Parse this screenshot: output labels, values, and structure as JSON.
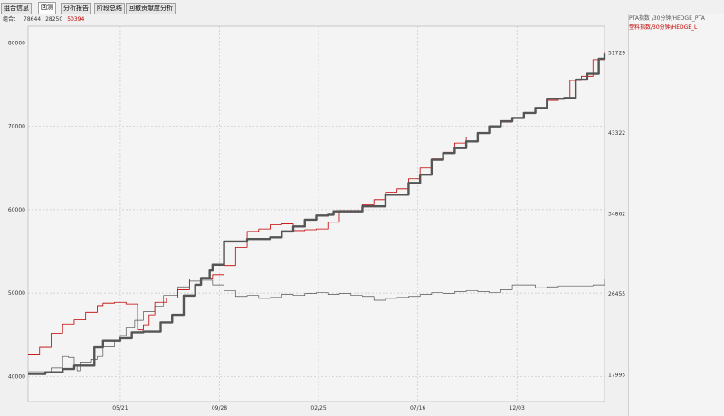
{
  "tabs": [
    {
      "label": "组合信息",
      "active": false
    },
    {
      "label": "回测",
      "active": true
    },
    {
      "label": "分析报告",
      "active": false
    },
    {
      "label": "阶段总结",
      "active": false
    },
    {
      "label": "回撤贡献度分析",
      "active": false
    }
  ],
  "subtitle": {
    "label": "组合：",
    "v1": "78644",
    "v2": "28250",
    "v3": "50394"
  },
  "legend": [
    "PTA指数 /30分钟/HEDGE_PTA",
    "塑料指数/30分钟/HEDGE_L"
  ],
  "colors": {
    "portfolio": "#555555",
    "pta": "#555555",
    "plastic": "#c00000"
  },
  "chart_data": {
    "type": "line",
    "x_ticks": [
      "05/21",
      "09/28",
      "02/25",
      "07/16",
      "12/03"
    ],
    "left_axis": {
      "ticks": [
        40000,
        50000,
        60000,
        70000,
        80000
      ],
      "range": [
        37000,
        82000
      ]
    },
    "right_axis": {
      "ticks": [
        17995,
        26455,
        34862,
        43322,
        51729
      ],
      "range": [
        15176,
        54535
      ]
    },
    "grid": true,
    "x_range": [
      0,
      100
    ],
    "series": [
      {
        "name": "组合",
        "axis": "left",
        "x": [
          0,
          3,
          6,
          8,
          10,
          11.5,
          13,
          16,
          18,
          20,
          23,
          25,
          27,
          29,
          30,
          31.5,
          32,
          34,
          38,
          42,
          44,
          46,
          48,
          50,
          52,
          53,
          55,
          58,
          62,
          66,
          68,
          70,
          72,
          74,
          76,
          78,
          80,
          82,
          84,
          86,
          88,
          90,
          93,
          95,
          97,
          99,
          100
        ],
        "y": [
          40300,
          40500,
          40900,
          41300,
          41300,
          43500,
          44300,
          44600,
          45300,
          45400,
          46500,
          47400,
          49700,
          51000,
          51800,
          52700,
          53400,
          56200,
          56500,
          56700,
          57400,
          58000,
          58800,
          59300,
          59400,
          59800,
          59800,
          60400,
          61800,
          63200,
          64200,
          66000,
          66800,
          67400,
          68200,
          69200,
          70000,
          70600,
          71000,
          71600,
          72200,
          73300,
          73400,
          75600,
          76300,
          78100,
          78700
        ]
      },
      {
        "name": "PTA指数 /30分钟/HEDGE_PTA",
        "axis": "right",
        "x": [
          0,
          4,
          6,
          7,
          8,
          8.5,
          9,
          11,
          12,
          13,
          15,
          16,
          17,
          18.5,
          20,
          22,
          23.5,
          26,
          28,
          30,
          32,
          34,
          36,
          38,
          40,
          42,
          44,
          46,
          48,
          50,
          52,
          54,
          56,
          58,
          60,
          62,
          64,
          66,
          68,
          70,
          72,
          74,
          76,
          78,
          80,
          82,
          84,
          86,
          88,
          90,
          92,
          94,
          96,
          98,
          100
        ],
        "y": [
          18300,
          18700,
          19900,
          19800,
          18900,
          18400,
          19300,
          19600,
          19900,
          20900,
          21500,
          22100,
          22900,
          23700,
          24600,
          25200,
          26300,
          27200,
          27800,
          27900,
          27400,
          26800,
          26200,
          26300,
          26000,
          26100,
          26400,
          26300,
          26500,
          26600,
          26400,
          26500,
          26300,
          26200,
          25800,
          26000,
          26100,
          26200,
          26400,
          26600,
          26500,
          26700,
          26800,
          26700,
          26600,
          26900,
          27400,
          27400,
          27100,
          27200,
          27300,
          27300,
          27300,
          27400,
          28000
        ]
      },
      {
        "name": "塑料指数/30分钟/HEDGE_L",
        "axis": "left",
        "x": [
          0,
          2,
          4,
          6,
          8,
          10,
          12,
          13,
          15,
          17,
          19,
          20,
          21,
          22,
          24,
          26,
          28,
          30,
          32,
          34,
          36,
          38,
          40,
          42,
          44,
          46,
          48,
          50,
          52,
          54,
          56,
          58,
          60,
          62,
          64,
          66,
          68,
          70,
          72,
          74,
          76,
          78,
          80,
          82,
          84,
          86,
          88,
          90,
          92,
          94,
          96,
          98,
          100
        ],
        "y": [
          42700,
          43500,
          45200,
          46300,
          46800,
          47700,
          48500,
          48800,
          48900,
          48700,
          45600,
          46200,
          47400,
          48900,
          49400,
          50400,
          51700,
          51800,
          52200,
          53300,
          55500,
          57400,
          57700,
          58200,
          58300,
          57500,
          57600,
          57700,
          58500,
          59900,
          59900,
          60600,
          61200,
          62100,
          62500,
          63700,
          65000,
          66100,
          66900,
          68000,
          68700,
          69200,
          70000,
          70500,
          71000,
          71600,
          72200,
          73100,
          73300,
          75500,
          76000,
          78000,
          79000
        ]
      }
    ]
  }
}
